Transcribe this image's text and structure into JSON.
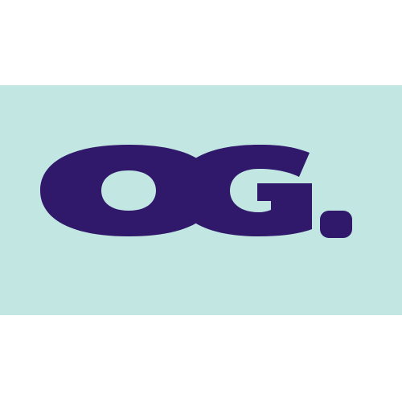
{
  "logo": {
    "text": "OG.",
    "letters": [
      "O",
      "G",
      "."
    ]
  },
  "colors": {
    "page_background": "#ffffff",
    "banner_background": "#c2e7e3",
    "logo_text": "#30186b"
  }
}
